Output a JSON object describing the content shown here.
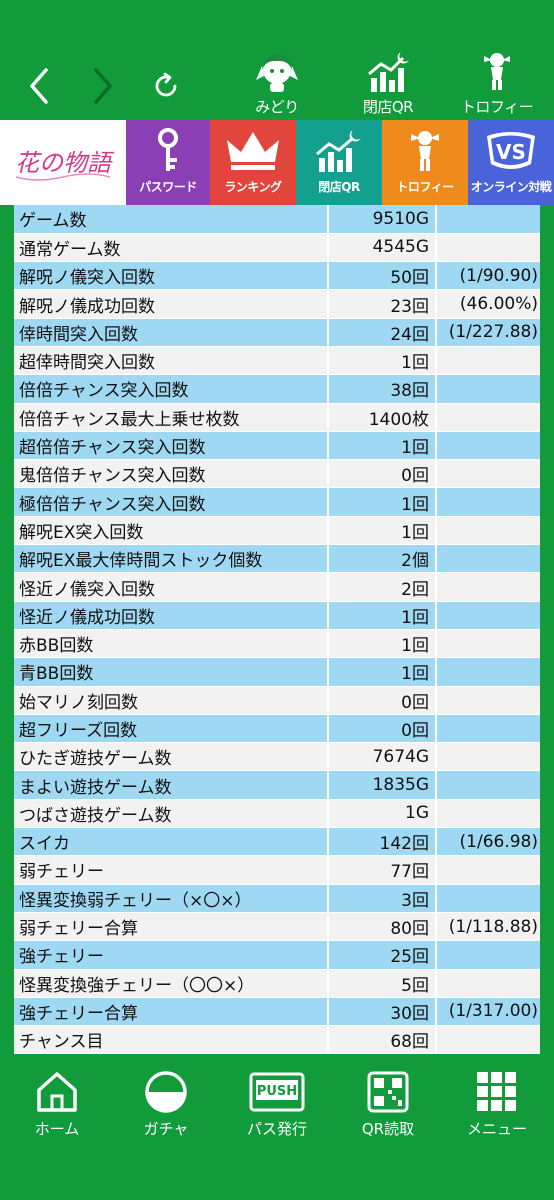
{
  "top_nav": {
    "items": [
      {
        "label": "みどり",
        "icon": "character-icon"
      },
      {
        "label": "閉店QR",
        "icon": "chart-moon-icon"
      },
      {
        "label": "トロフィー",
        "icon": "trophy-icon"
      }
    ]
  },
  "menu_tiles": {
    "logo_text": "花の物語",
    "items": [
      {
        "label": "パスワード",
        "color": "#8b3fb5",
        "icon": "key-icon"
      },
      {
        "label": "ランキング",
        "color": "#e2453c",
        "icon": "crown-icon"
      },
      {
        "label": "閉店QR",
        "color": "#13a08f",
        "icon": "chart-moon-icon"
      },
      {
        "label": "トロフィー",
        "color": "#ef8a1d",
        "icon": "trophy-icon"
      },
      {
        "label": "オンライン対戦",
        "color": "#4a63d9",
        "icon": "vs-online-icon"
      }
    ]
  },
  "stats": {
    "rows": [
      {
        "name": "ゲーム数",
        "value": "9510G",
        "rate": ""
      },
      {
        "name": "通常ゲーム数",
        "value": "4545G",
        "rate": ""
      },
      {
        "name": "解呪ノ儀突入回数",
        "value": "50回",
        "rate": "(1/90.90)"
      },
      {
        "name": "解呪ノ儀成功回数",
        "value": "23回",
        "rate": "(46.00%)"
      },
      {
        "name": "倖時間突入回数",
        "value": "24回",
        "rate": "(1/227.88)"
      },
      {
        "name": "超倖時間突入回数",
        "value": "1回",
        "rate": ""
      },
      {
        "name": "倍倍チャンス突入回数",
        "value": "38回",
        "rate": ""
      },
      {
        "name": "倍倍チャンス最大上乗せ枚数",
        "value": "1400枚",
        "rate": ""
      },
      {
        "name": "超倍倍チャンス突入回数",
        "value": "1回",
        "rate": ""
      },
      {
        "name": "鬼倍倍チャンス突入回数",
        "value": "0回",
        "rate": ""
      },
      {
        "name": "極倍倍チャンス突入回数",
        "value": "1回",
        "rate": ""
      },
      {
        "name": "解呪EX突入回数",
        "value": "1回",
        "rate": ""
      },
      {
        "name": "解呪EX最大倖時間ストック個数",
        "value": "2個",
        "rate": ""
      },
      {
        "name": "怪近ノ儀突入回数",
        "value": "2回",
        "rate": ""
      },
      {
        "name": "怪近ノ儀成功回数",
        "value": "1回",
        "rate": ""
      },
      {
        "name": "赤BB回数",
        "value": "1回",
        "rate": ""
      },
      {
        "name": "青BB回数",
        "value": "1回",
        "rate": ""
      },
      {
        "name": "始マリノ刻回数",
        "value": "0回",
        "rate": ""
      },
      {
        "name": "超フリーズ回数",
        "value": "0回",
        "rate": ""
      },
      {
        "name": "ひたぎ遊技ゲーム数",
        "value": "7674G",
        "rate": ""
      },
      {
        "name": "まよい遊技ゲーム数",
        "value": "1835G",
        "rate": ""
      },
      {
        "name": "つばさ遊技ゲーム数",
        "value": "1G",
        "rate": ""
      },
      {
        "name": "スイカ",
        "value": "142回",
        "rate": "(1/66.98)"
      },
      {
        "name": "弱チェリー",
        "value": "77回",
        "rate": ""
      },
      {
        "name": "怪異変換弱チェリー（×〇×）",
        "value": "3回",
        "rate": ""
      },
      {
        "name": "弱チェリー合算",
        "value": "80回",
        "rate": "(1/118.88)"
      },
      {
        "name": "強チェリー",
        "value": "25回",
        "rate": ""
      },
      {
        "name": "怪異変換強チェリー（〇〇×）",
        "value": "5回",
        "rate": ""
      },
      {
        "name": "強チェリー合算",
        "value": "30回",
        "rate": "(1/317.00)"
      },
      {
        "name": "チャンス目",
        "value": "68回",
        "rate": ""
      }
    ]
  },
  "bottom_nav": {
    "items": [
      {
        "label": "ホーム",
        "icon": "home-icon"
      },
      {
        "label": "ガチャ",
        "icon": "gacha-icon"
      },
      {
        "label": "パス発行",
        "icon": "push-icon",
        "badge": "PUSH"
      },
      {
        "label": "QR読取",
        "icon": "qr-icon"
      },
      {
        "label": "メニュー",
        "icon": "grid-menu-icon"
      }
    ]
  },
  "colors": {
    "brand_green": "#119b3b",
    "row_blue": "#9fd8f3",
    "row_gray": "#f2f2f2"
  }
}
